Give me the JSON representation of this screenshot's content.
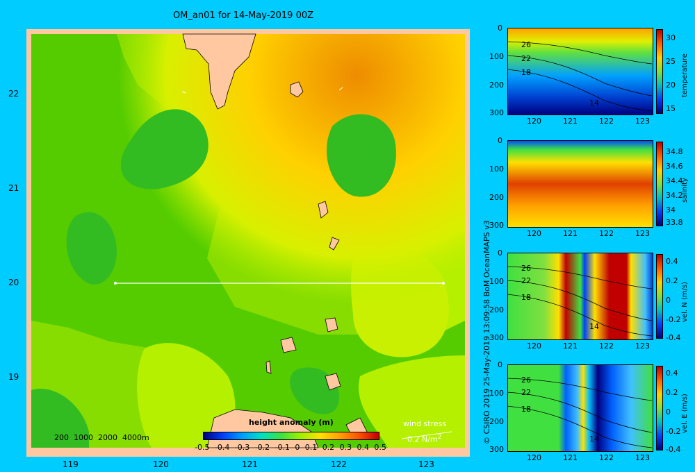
{
  "title": "OM_an01 for 14-May-2019 00Z",
  "map": {
    "x_ticks": [
      "119",
      "120",
      "121",
      "122",
      "123"
    ],
    "y_ticks": [
      "22",
      "21",
      "20",
      "19"
    ],
    "bathy_legend": "200  1000  2000  4000m",
    "colorbar_title": "height anomaly (m)",
    "colorbar_ticks": [
      "-0.5",
      "-0.4",
      "-0.3",
      "-0.2",
      "-0.1",
      "0",
      "0.1",
      "0.2",
      "0.3",
      "0.4",
      "0.5"
    ],
    "wind_label": "wind stress",
    "wind_scale": "0.2 N/m",
    "wind_scale_sup": "2"
  },
  "credit": "© CSIRO 2019   25-May-2019 13:09:58 BoM OceanMAPS v3",
  "panels": [
    {
      "id": "temperature",
      "label": "temperature",
      "y_ticks": [
        "0",
        "100",
        "200",
        "300"
      ],
      "x_ticks": [
        "120",
        "121",
        "122",
        "123"
      ],
      "cb_ticks": [
        "30",
        "25",
        "20",
        "15"
      ],
      "contour_labels": [
        "26",
        "22",
        "18",
        "14"
      ]
    },
    {
      "id": "salinity",
      "label": "salinity",
      "y_ticks": [
        "0",
        "100",
        "200",
        "300"
      ],
      "x_ticks": [
        "120",
        "121",
        "122",
        "123"
      ],
      "cb_ticks": [
        "34.8",
        "34.6",
        "34.4",
        "34.2",
        "34",
        "33.8"
      ],
      "contour_labels": []
    },
    {
      "id": "vel-n",
      "label": "vel. N (m/s)",
      "y_ticks": [
        "0",
        "100",
        "200",
        "300"
      ],
      "x_ticks": [
        "120",
        "121",
        "122",
        "123"
      ],
      "cb_ticks": [
        "0.4",
        "0.2",
        "0",
        "-0.2",
        "-0.4"
      ],
      "contour_labels": [
        "26",
        "22",
        "18",
        "14"
      ]
    },
    {
      "id": "vel-e",
      "label": "vel. E (m/s)",
      "y_ticks": [
        "0",
        "100",
        "200",
        "300"
      ],
      "x_ticks": [
        "120",
        "121",
        "122",
        "123"
      ],
      "cb_ticks": [
        "0.4",
        "0.2",
        "0",
        "-0.2",
        "-0.4"
      ],
      "contour_labels": [
        "26",
        "22",
        "18",
        "14"
      ]
    }
  ],
  "chart_data": [
    {
      "type": "heatmap",
      "title": "OM_an01 for 14-May-2019 00Z",
      "variable": "height anomaly (m)",
      "xlim": [
        118.5,
        123.5
      ],
      "ylim": [
        18.3,
        22.7
      ],
      "x_ticks": [
        119,
        120,
        121,
        122,
        123
      ],
      "y_ticks": [
        19,
        20,
        21,
        22
      ],
      "colorbar_range": [
        -0.5,
        0.5
      ],
      "section_line": {
        "lat": 20.0,
        "lon_from": 119.5,
        "lon_to": 123.2
      },
      "field_estimate": {
        "min": 0.0,
        "max": 0.35
      }
    },
    {
      "type": "heatmap",
      "title": "",
      "variable": "temperature",
      "xlim": [
        119.5,
        123.2
      ],
      "ylim": [
        300,
        0
      ],
      "colorbar_range": [
        14,
        32
      ],
      "contour_labels": [
        26,
        22,
        18,
        14
      ]
    },
    {
      "type": "heatmap",
      "title": "",
      "variable": "salinity",
      "xlim": [
        119.5,
        123.2
      ],
      "ylim": [
        300,
        0
      ],
      "colorbar_range": [
        33.7,
        34.9
      ]
    },
    {
      "type": "heatmap",
      "title": "",
      "variable": "vel. N (m/s)",
      "xlim": [
        119.5,
        123.2
      ],
      "ylim": [
        300,
        0
      ],
      "colorbar_range": [
        -0.45,
        0.45
      ],
      "contour_labels": [
        26,
        22,
        18,
        14
      ]
    },
    {
      "type": "heatmap",
      "title": "",
      "variable": "vel. E (m/s)",
      "xlim": [
        119.5,
        123.2
      ],
      "ylim": [
        300,
        0
      ],
      "colorbar_range": [
        -0.45,
        0.45
      ],
      "contour_labels": [
        26,
        22,
        18,
        14
      ]
    }
  ]
}
